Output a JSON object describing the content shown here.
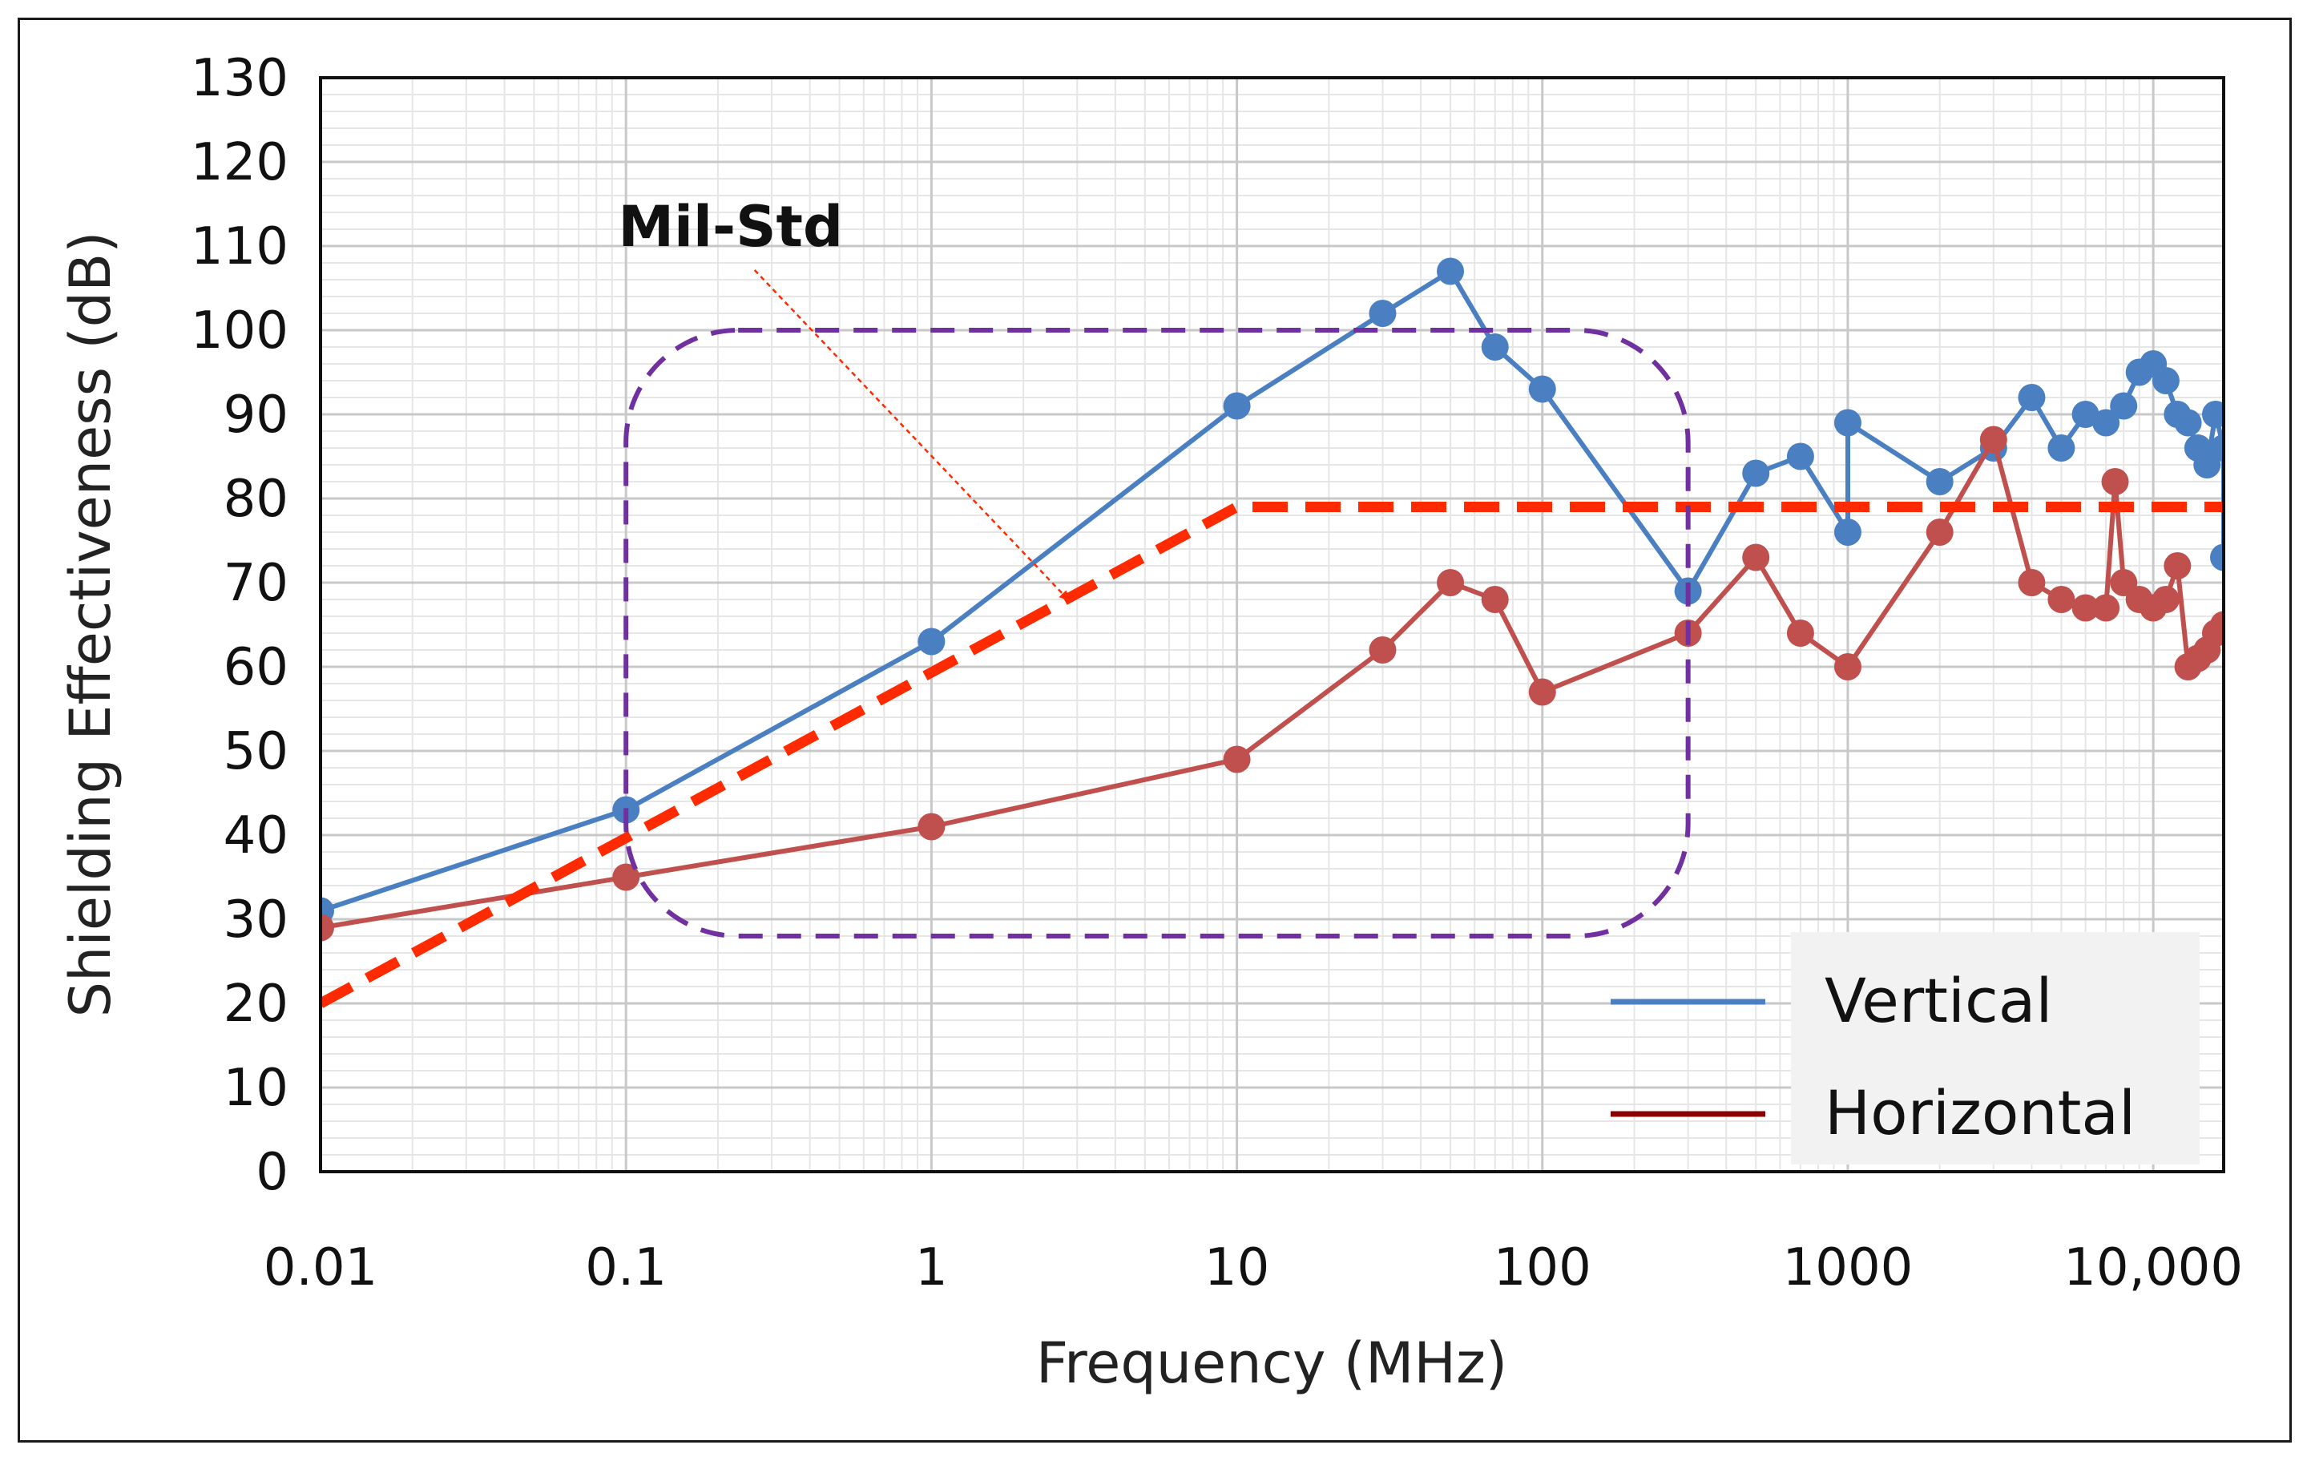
{
  "chart_data": {
    "type": "line",
    "title": "",
    "xlabel": "Frequency (MHz)",
    "ylabel": "Shielding Effectiveness (dB)",
    "xscale": "log",
    "xlim": [
      0.01,
      17000
    ],
    "ylim": [
      0,
      130
    ],
    "grid": true,
    "legend_position": "bottom-right",
    "x_tick_values": [
      0.01,
      0.1,
      1,
      10,
      100,
      1000,
      10000
    ],
    "x_tick_labels": [
      "0.01",
      "0.1",
      "1",
      "10",
      "100",
      "1000",
      "10,000"
    ],
    "y_tick_values": [
      0,
      10,
      20,
      30,
      40,
      50,
      60,
      70,
      80,
      90,
      100,
      110,
      120,
      130
    ],
    "y_tick_labels": [
      "0",
      "10",
      "20",
      "30",
      "40",
      "50",
      "60",
      "70",
      "80",
      "90",
      "100",
      "110",
      "120",
      "130"
    ],
    "series": [
      {
        "name": "Vertical",
        "color": "#4a7fc1",
        "x": [
          0.01,
          0.1,
          1,
          10,
          30,
          50,
          70,
          100,
          300,
          500,
          700,
          1000,
          1000,
          2000,
          3000,
          4000,
          5000,
          6000,
          7000,
          8000,
          9000,
          10000,
          11000,
          12000,
          13000,
          14000,
          15000,
          16000,
          17000,
          17000
        ],
        "y": [
          31,
          43,
          63,
          91,
          102,
          107,
          98,
          93,
          69,
          83,
          85,
          76,
          89,
          82,
          86,
          92,
          86,
          90,
          89,
          91,
          95,
          96,
          94,
          90,
          89,
          86,
          84,
          90,
          86,
          73
        ]
      },
      {
        "name": "Horizontal",
        "color": "#c0504d",
        "x": [
          0.01,
          0.1,
          1,
          10,
          30,
          50,
          70,
          100,
          300,
          500,
          700,
          1000,
          2000,
          3000,
          4000,
          5000,
          6000,
          7000,
          7500,
          8000,
          9000,
          10000,
          11000,
          12000,
          13000,
          14000,
          15000,
          16000,
          17000
        ],
        "y": [
          29,
          35,
          41,
          49,
          62,
          70,
          68,
          57,
          64,
          73,
          64,
          60,
          76,
          87,
          70,
          68,
          67,
          67,
          82,
          70,
          68,
          67,
          68,
          72,
          60,
          61,
          62,
          64,
          65
        ]
      },
      {
        "name": "Mil-Std",
        "color": "#ff2a00",
        "style": "dashed",
        "x": [
          0.01,
          10,
          17000
        ],
        "y": [
          20,
          79,
          79
        ]
      }
    ],
    "annotations": [
      {
        "text": "Mil-Std",
        "x": 0.22,
        "y": 110,
        "arrow_to": [
          2.8,
          68
        ]
      },
      {
        "type": "dashed-rounded-box",
        "color": "#7030a0",
        "x_range": [
          0.1,
          300
        ],
        "y_range": [
          28,
          100
        ]
      }
    ]
  }
}
